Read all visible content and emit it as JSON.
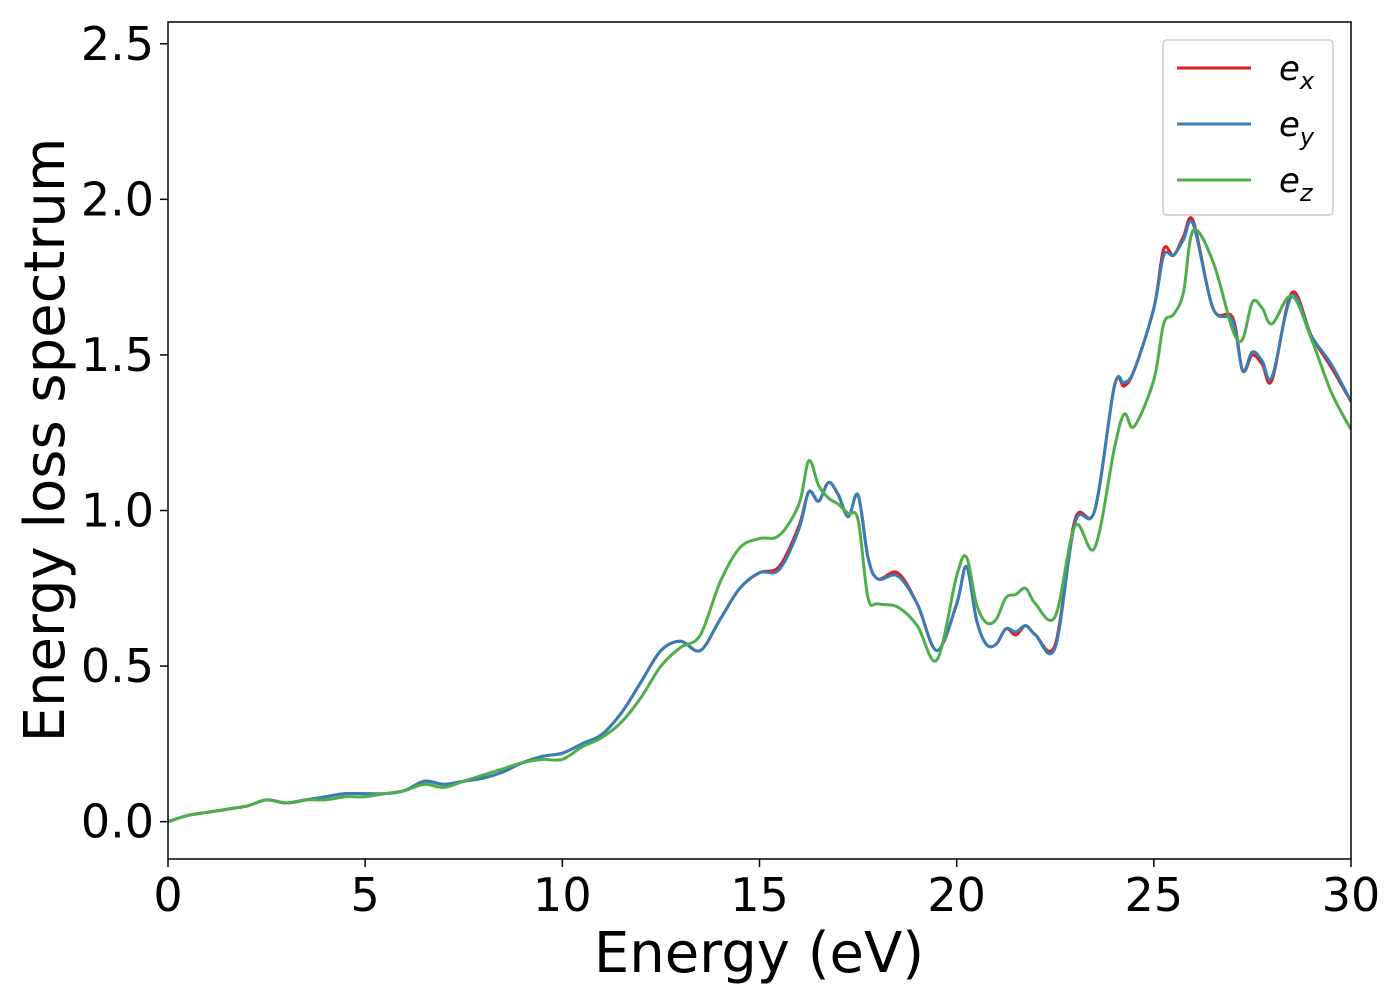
{
  "chart_data": {
    "type": "line",
    "title": "",
    "xlabel": "Energy (eV)",
    "ylabel": "Energy loss spectrum",
    "xlim": [
      0,
      30
    ],
    "ylim": [
      -0.12,
      2.57
    ],
    "xticks": [
      0,
      5,
      10,
      15,
      20,
      25,
      30
    ],
    "yticks": [
      0.0,
      0.5,
      1.0,
      1.5,
      2.0,
      2.5
    ],
    "xtick_labels": [
      "0",
      "5",
      "10",
      "15",
      "20",
      "25",
      "30"
    ],
    "ytick_labels": [
      "0.0",
      "0.5",
      "1.0",
      "1.5",
      "2.0",
      "2.5"
    ],
    "grid": false,
    "legend": {
      "position": "top-right"
    },
    "series": [
      {
        "name": "e_x",
        "label_base": "e",
        "label_sub": "x",
        "color": "#e41a1c",
        "x": [
          0,
          0.5,
          1,
          1.5,
          2,
          2.5,
          3,
          3.5,
          4,
          4.5,
          5,
          5.5,
          6,
          6.5,
          7,
          7.5,
          8,
          8.5,
          9,
          9.5,
          10,
          10.5,
          11,
          11.5,
          12,
          12.5,
          13,
          13.5,
          14,
          14.5,
          15,
          15.5,
          16,
          16.25,
          16.5,
          16.75,
          17,
          17.25,
          17.5,
          17.75,
          18,
          18.5,
          19,
          19.5,
          20,
          20.25,
          20.5,
          20.75,
          21,
          21.25,
          21.5,
          21.75,
          22,
          22.5,
          23,
          23.5,
          24,
          24.25,
          24.5,
          25,
          25.25,
          25.5,
          25.75,
          26,
          26.5,
          27,
          27.25,
          27.5,
          27.75,
          28,
          28.5,
          29,
          29.5,
          30
        ],
        "values": [
          0.0,
          0.02,
          0.03,
          0.04,
          0.05,
          0.07,
          0.06,
          0.07,
          0.08,
          0.09,
          0.09,
          0.09,
          0.1,
          0.13,
          0.12,
          0.13,
          0.14,
          0.16,
          0.19,
          0.21,
          0.22,
          0.25,
          0.28,
          0.35,
          0.45,
          0.55,
          0.58,
          0.55,
          0.65,
          0.75,
          0.8,
          0.82,
          0.95,
          1.06,
          1.03,
          1.09,
          1.05,
          0.98,
          1.05,
          0.85,
          0.78,
          0.8,
          0.7,
          0.55,
          0.7,
          0.82,
          0.65,
          0.57,
          0.57,
          0.62,
          0.6,
          0.63,
          0.6,
          0.57,
          0.97,
          1.0,
          1.4,
          1.4,
          1.45,
          1.65,
          1.84,
          1.82,
          1.88,
          1.93,
          1.65,
          1.62,
          1.45,
          1.5,
          1.47,
          1.42,
          1.7,
          1.56,
          1.46,
          1.35
        ]
      },
      {
        "name": "e_y",
        "label_base": "e",
        "label_sub": "y",
        "color": "#377eb8",
        "x": [
          0,
          0.5,
          1,
          1.5,
          2,
          2.5,
          3,
          3.5,
          4,
          4.5,
          5,
          5.5,
          6,
          6.5,
          7,
          7.5,
          8,
          8.5,
          9,
          9.5,
          10,
          10.5,
          11,
          11.5,
          12,
          12.5,
          13,
          13.5,
          14,
          14.5,
          15,
          15.5,
          16,
          16.25,
          16.5,
          16.75,
          17,
          17.25,
          17.5,
          17.75,
          18,
          18.5,
          19,
          19.5,
          20,
          20.25,
          20.5,
          20.75,
          21,
          21.25,
          21.5,
          21.75,
          22,
          22.5,
          23,
          23.5,
          24,
          24.25,
          24.5,
          25,
          25.25,
          25.5,
          25.75,
          26,
          26.5,
          27,
          27.25,
          27.5,
          27.75,
          28,
          28.5,
          29,
          29.5,
          30
        ],
        "values": [
          0.0,
          0.02,
          0.03,
          0.04,
          0.05,
          0.07,
          0.06,
          0.07,
          0.08,
          0.09,
          0.09,
          0.09,
          0.1,
          0.13,
          0.12,
          0.13,
          0.14,
          0.16,
          0.19,
          0.21,
          0.22,
          0.25,
          0.28,
          0.35,
          0.45,
          0.55,
          0.58,
          0.55,
          0.65,
          0.75,
          0.8,
          0.81,
          0.94,
          1.06,
          1.03,
          1.09,
          1.05,
          0.98,
          1.05,
          0.85,
          0.78,
          0.79,
          0.7,
          0.55,
          0.7,
          0.82,
          0.65,
          0.57,
          0.57,
          0.62,
          0.61,
          0.63,
          0.6,
          0.56,
          0.96,
          1.0,
          1.4,
          1.41,
          1.45,
          1.65,
          1.82,
          1.82,
          1.87,
          1.92,
          1.65,
          1.61,
          1.45,
          1.51,
          1.48,
          1.43,
          1.69,
          1.56,
          1.47,
          1.35
        ]
      },
      {
        "name": "e_z",
        "label_base": "e",
        "label_sub": "z",
        "color": "#4daf4a",
        "x": [
          0,
          0.5,
          1,
          1.5,
          2,
          2.5,
          3,
          3.5,
          4,
          4.5,
          5,
          5.5,
          6,
          6.5,
          7,
          7.5,
          8,
          8.5,
          9,
          9.5,
          10,
          10.5,
          11,
          11.5,
          12,
          12.5,
          13,
          13.5,
          14,
          14.5,
          15,
          15.5,
          16,
          16.25,
          16.5,
          16.75,
          17,
          17.25,
          17.5,
          17.75,
          18,
          18.5,
          19,
          19.5,
          20,
          20.25,
          20.5,
          20.75,
          21,
          21.25,
          21.5,
          21.75,
          22,
          22.5,
          23,
          23.5,
          24,
          24.25,
          24.5,
          25,
          25.25,
          25.5,
          25.75,
          26,
          26.5,
          27,
          27.25,
          27.5,
          27.75,
          28,
          28.5,
          29,
          29.5,
          30
        ],
        "values": [
          0.0,
          0.02,
          0.03,
          0.04,
          0.05,
          0.07,
          0.06,
          0.07,
          0.07,
          0.08,
          0.08,
          0.09,
          0.1,
          0.12,
          0.11,
          0.13,
          0.15,
          0.17,
          0.19,
          0.2,
          0.2,
          0.24,
          0.27,
          0.32,
          0.4,
          0.5,
          0.56,
          0.6,
          0.77,
          0.88,
          0.91,
          0.92,
          1.02,
          1.16,
          1.08,
          1.04,
          1.02,
          0.99,
          0.97,
          0.72,
          0.7,
          0.69,
          0.63,
          0.52,
          0.79,
          0.85,
          0.7,
          0.64,
          0.65,
          0.72,
          0.73,
          0.75,
          0.7,
          0.66,
          0.95,
          0.88,
          1.2,
          1.31,
          1.27,
          1.42,
          1.6,
          1.63,
          1.7,
          1.9,
          1.8,
          1.58,
          1.55,
          1.67,
          1.65,
          1.6,
          1.69,
          1.55,
          1.38,
          1.26
        ]
      }
    ]
  }
}
